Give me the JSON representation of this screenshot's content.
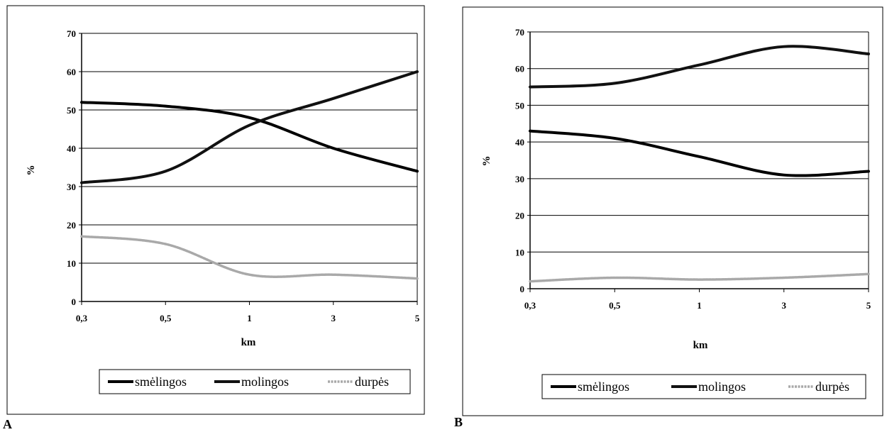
{
  "panels": [
    {
      "letter": "A"
    },
    {
      "letter": "B"
    }
  ],
  "chart_data": [
    {
      "type": "line",
      "x": [
        "0,3",
        "0,5",
        "1",
        "3",
        "5"
      ],
      "xlabel": "km",
      "ylabel": "%",
      "ylim": [
        0,
        70
      ],
      "yticks": [
        0,
        10,
        20,
        30,
        40,
        50,
        60,
        70
      ],
      "grid": true,
      "legend_position": "bottom",
      "series": [
        {
          "name": "smėlingos",
          "color": "#000000",
          "values": [
            52,
            51,
            48,
            40,
            34
          ]
        },
        {
          "name": "molingos",
          "color": "#111111",
          "values": [
            31,
            34,
            46,
            53,
            60
          ]
        },
        {
          "name": "durpės",
          "color": "#a9a9a9",
          "values": [
            17,
            15,
            7,
            7,
            6
          ]
        }
      ]
    },
    {
      "type": "line",
      "x": [
        "0,3",
        "0,5",
        "1",
        "3",
        "5"
      ],
      "xlabel": "km",
      "ylabel": "%",
      "ylim": [
        0,
        70
      ],
      "yticks": [
        0,
        10,
        20,
        30,
        40,
        50,
        60,
        70
      ],
      "grid": true,
      "legend_position": "bottom",
      "series": [
        {
          "name": "smėlingos",
          "color": "#000000",
          "values": [
            43,
            41,
            36,
            31,
            32
          ]
        },
        {
          "name": "molingos",
          "color": "#111111",
          "values": [
            55,
            56,
            61,
            66,
            64
          ]
        },
        {
          "name": "durpės",
          "color": "#a9a9a9",
          "values": [
            2,
            3,
            2.5,
            3,
            4
          ]
        }
      ]
    }
  ]
}
